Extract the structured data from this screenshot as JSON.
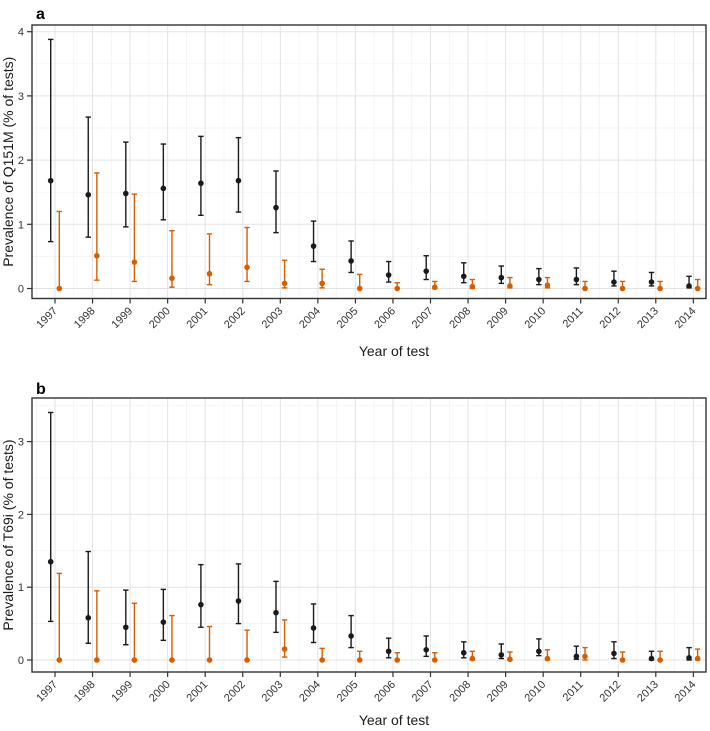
{
  "figure_title": "",
  "chart_data": [
    {
      "type": "scatter",
      "panel_label": "a",
      "ylabel": "Prevalence of Q151M (% of tests)",
      "xlabel": "Year of test",
      "categories": [
        "1997",
        "1998",
        "1999",
        "2000",
        "2001",
        "2002",
        "2003",
        "2004",
        "2005",
        "2006",
        "2007",
        "2008",
        "2009",
        "2010",
        "2011",
        "2012",
        "2013",
        "2014"
      ],
      "y_ticks": [
        0,
        1,
        2,
        3,
        4
      ],
      "y_minor_ticks": [
        0.5,
        1.5,
        2.5,
        3.5
      ],
      "ylim": [
        -0.2,
        4.1
      ],
      "grid": true,
      "legend": "none",
      "series": [
        {
          "name": "black-series",
          "color": "#1a1a1a",
          "values": [
            1.68,
            1.46,
            1.48,
            1.56,
            1.64,
            1.68,
            1.26,
            0.66,
            0.43,
            0.21,
            0.27,
            0.19,
            0.17,
            0.14,
            0.14,
            0.1,
            0.1,
            0.04
          ],
          "lower": [
            0.73,
            0.8,
            0.96,
            1.07,
            1.14,
            1.19,
            0.87,
            0.42,
            0.25,
            0.1,
            0.14,
            0.09,
            0.08,
            0.06,
            0.06,
            0.04,
            0.04,
            0.01
          ],
          "upper": [
            3.88,
            2.67,
            2.28,
            2.25,
            2.37,
            2.35,
            1.83,
            1.05,
            0.74,
            0.42,
            0.51,
            0.4,
            0.35,
            0.31,
            0.32,
            0.27,
            0.25,
            0.19
          ]
        },
        {
          "name": "orange-series",
          "color": "#D55E00",
          "values": [
            0.0,
            0.51,
            0.41,
            0.16,
            0.23,
            0.33,
            0.08,
            0.08,
            0.0,
            0.0,
            0.02,
            0.03,
            0.04,
            0.05,
            0.0,
            0.0,
            0.0,
            0.0
          ],
          "lower": [
            0.0,
            0.13,
            0.11,
            0.02,
            0.06,
            0.11,
            0.01,
            0.01,
            0.0,
            0.0,
            0.0,
            0.0,
            0.01,
            0.01,
            0.0,
            0.0,
            0.0,
            0.0
          ],
          "upper": [
            1.2,
            1.8,
            1.47,
            0.9,
            0.85,
            0.95,
            0.44,
            0.3,
            0.22,
            0.09,
            0.11,
            0.14,
            0.17,
            0.17,
            0.11,
            0.11,
            0.11,
            0.14
          ]
        }
      ]
    },
    {
      "type": "scatter",
      "panel_label": "b",
      "ylabel": "Prevalence of T69i (% of tests)",
      "xlabel": "Year of test",
      "categories": [
        "1997",
        "1998",
        "1999",
        "2000",
        "2001",
        "2002",
        "2003",
        "2004",
        "2005",
        "2006",
        "2007",
        "2008",
        "2009",
        "2010",
        "2011",
        "2012",
        "2013",
        "2014"
      ],
      "y_ticks": [
        0,
        1,
        2,
        3
      ],
      "y_minor_ticks": [
        0.5,
        1.5,
        2.5,
        3.5
      ],
      "ylim": [
        -0.16,
        3.59
      ],
      "grid": true,
      "legend": "none",
      "series": [
        {
          "name": "black-series",
          "color": "#1a1a1a",
          "values": [
            1.35,
            0.58,
            0.45,
            0.52,
            0.76,
            0.81,
            0.65,
            0.44,
            0.33,
            0.12,
            0.14,
            0.1,
            0.07,
            0.12,
            0.05,
            0.09,
            0.02,
            0.03
          ],
          "lower": [
            0.53,
            0.23,
            0.21,
            0.27,
            0.45,
            0.5,
            0.38,
            0.24,
            0.17,
            0.03,
            0.05,
            0.03,
            0.02,
            0.06,
            0.01,
            0.02,
            0.0,
            0.0
          ],
          "upper": [
            3.4,
            1.49,
            0.96,
            0.97,
            1.31,
            1.32,
            1.08,
            0.77,
            0.61,
            0.3,
            0.33,
            0.25,
            0.22,
            0.29,
            0.19,
            0.25,
            0.12,
            0.17
          ]
        },
        {
          "name": "orange-series",
          "color": "#D55E00",
          "values": [
            0.0,
            0.0,
            0.0,
            0.0,
            0.0,
            0.0,
            0.15,
            0.0,
            0.0,
            0.0,
            0.0,
            0.02,
            0.01,
            0.02,
            0.05,
            0.0,
            0.0,
            0.02
          ],
          "lower": [
            0.0,
            0.0,
            0.0,
            0.0,
            0.0,
            0.0,
            0.04,
            0.0,
            0.0,
            0.0,
            0.0,
            0.0,
            0.0,
            0.0,
            0.0,
            0.0,
            0.0,
            0.0
          ],
          "upper": [
            1.19,
            0.95,
            0.78,
            0.61,
            0.46,
            0.41,
            0.55,
            0.16,
            0.12,
            0.1,
            0.1,
            0.12,
            0.11,
            0.14,
            0.17,
            0.11,
            0.12,
            0.15
          ]
        }
      ]
    }
  ],
  "style_colors": {
    "panel_border": "#333333",
    "grid_major": "#e3e3e3",
    "grid_minor": "#f1f1f1",
    "tick_mark": "#333333"
  }
}
